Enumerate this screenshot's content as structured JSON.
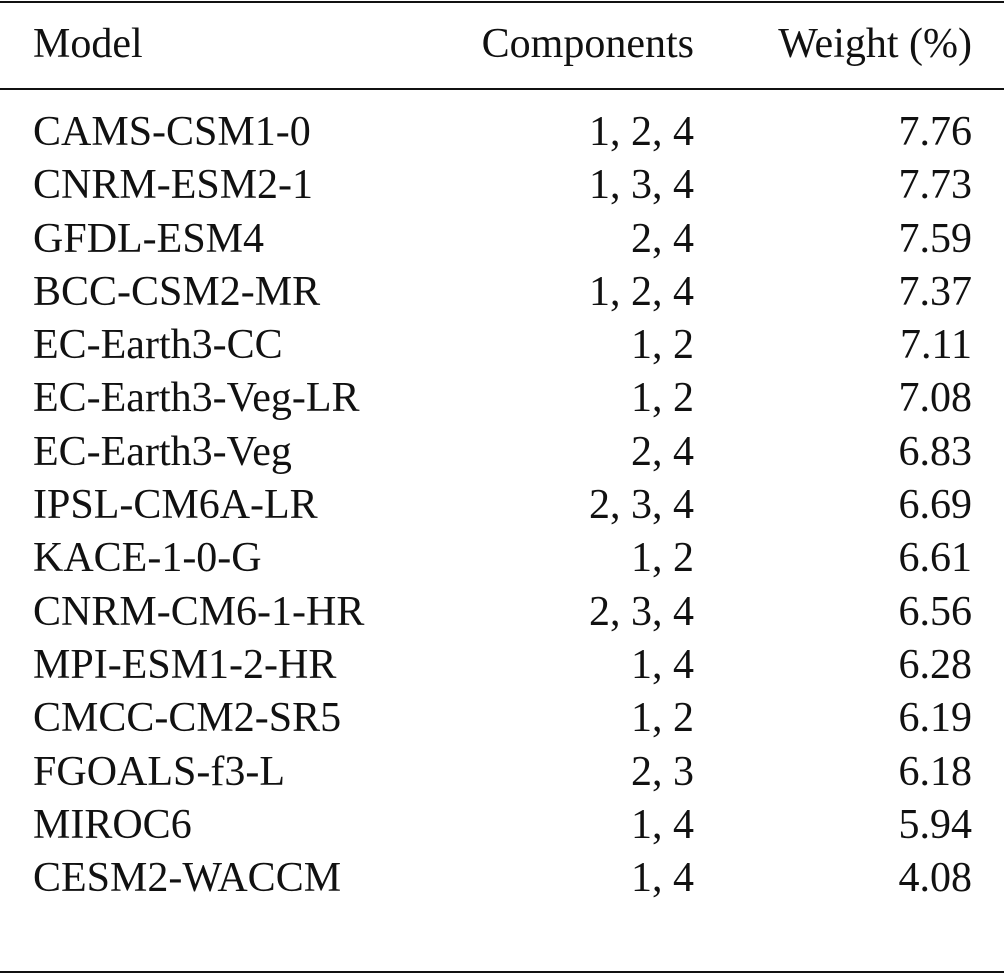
{
  "table": {
    "headers": {
      "model": "Model",
      "components": "Components",
      "weight": "Weight (%)"
    },
    "rows": [
      {
        "model": "CAMS-CSM1-0",
        "components": "1, 2, 4",
        "weight": "7.76"
      },
      {
        "model": "CNRM-ESM2-1",
        "components": "1, 3, 4",
        "weight": "7.73"
      },
      {
        "model": "GFDL-ESM4",
        "components": "2, 4",
        "weight": "7.59"
      },
      {
        "model": "BCC-CSM2-MR",
        "components": "1, 2, 4",
        "weight": "7.37"
      },
      {
        "model": "EC-Earth3-CC",
        "components": "1, 2",
        "weight": "7.11"
      },
      {
        "model": "EC-Earth3-Veg-LR",
        "components": "1, 2",
        "weight": "7.08"
      },
      {
        "model": "EC-Earth3-Veg",
        "components": "2, 4",
        "weight": "6.83"
      },
      {
        "model": "IPSL-CM6A-LR",
        "components": "2, 3, 4",
        "weight": "6.69"
      },
      {
        "model": "KACE-1-0-G",
        "components": "1, 2",
        "weight": "6.61"
      },
      {
        "model": "CNRM-CM6-1-HR",
        "components": "2, 3, 4",
        "weight": "6.56"
      },
      {
        "model": "MPI-ESM1-2-HR",
        "components": "1, 4",
        "weight": "6.28"
      },
      {
        "model": "CMCC-CM2-SR5",
        "components": "1, 2",
        "weight": "6.19"
      },
      {
        "model": "FGOALS-f3-L",
        "components": "2, 3",
        "weight": "6.18"
      },
      {
        "model": "MIROC6",
        "components": "1, 4",
        "weight": "5.94"
      },
      {
        "model": "CESM2-WACCM",
        "components": "1, 4",
        "weight": "4.08"
      }
    ]
  }
}
